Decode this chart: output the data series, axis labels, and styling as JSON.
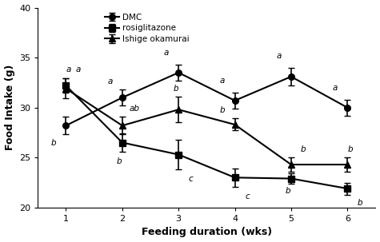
{
  "weeks": [
    1,
    2,
    3,
    4,
    5,
    6
  ],
  "DMC": {
    "y": [
      28.2,
      31.0,
      33.5,
      30.7,
      33.1,
      30.0
    ],
    "yerr": [
      0.9,
      0.8,
      0.8,
      0.8,
      0.9,
      0.8
    ],
    "label": "DMC",
    "marker": "o",
    "letters": [
      "b",
      "a",
      "a",
      "a",
      "a",
      "a"
    ],
    "letter_positions": [
      [
        0.78,
        26.9,
        "center",
        "top"
      ],
      [
        1.78,
        32.2,
        "center",
        "bottom"
      ],
      [
        2.78,
        35.1,
        "center",
        "bottom"
      ],
      [
        3.78,
        32.3,
        "center",
        "bottom"
      ],
      [
        4.78,
        34.8,
        "center",
        "bottom"
      ],
      [
        5.78,
        31.6,
        "center",
        "bottom"
      ]
    ]
  },
  "rosiglitazone": {
    "y": [
      32.2,
      26.5,
      25.3,
      23.0,
      22.9,
      21.9
    ],
    "yerr": [
      0.7,
      0.9,
      1.5,
      0.9,
      0.5,
      0.6
    ],
    "label": "rosiglitazone",
    "marker": "s",
    "letters": [
      "a",
      "b",
      "c",
      "c",
      "b",
      "b"
    ],
    "letter_positions": [
      [
        1.05,
        33.4,
        "center",
        "bottom"
      ],
      [
        1.95,
        25.0,
        "center",
        "top"
      ],
      [
        3.22,
        23.3,
        "center",
        "top"
      ],
      [
        4.22,
        21.5,
        "center",
        "top"
      ],
      [
        4.95,
        22.1,
        "center",
        "top"
      ],
      [
        6.22,
        20.9,
        "center",
        "top"
      ]
    ]
  },
  "ishige": {
    "y": [
      31.9,
      28.2,
      29.8,
      28.3,
      24.3,
      24.3
    ],
    "yerr": [
      1.0,
      0.9,
      1.3,
      0.6,
      0.7,
      0.7
    ],
    "label": "Ishige okamurai",
    "marker": "^",
    "letters": [
      "a",
      "ab",
      "b",
      "b",
      "b",
      "b"
    ],
    "letter_positions": [
      [
        1.22,
        33.4,
        "center",
        "bottom"
      ],
      [
        2.22,
        29.5,
        "center",
        "bottom"
      ],
      [
        2.95,
        31.5,
        "center",
        "bottom"
      ],
      [
        3.78,
        29.3,
        "center",
        "bottom"
      ],
      [
        5.22,
        25.4,
        "center",
        "bottom"
      ],
      [
        6.05,
        25.4,
        "center",
        "bottom"
      ]
    ]
  },
  "xlabel": "Feeding duration (wks)",
  "ylabel": "Food Intake (g)",
  "ylim": [
    20,
    40
  ],
  "yticks": [
    20,
    25,
    30,
    35,
    40
  ],
  "xlim": [
    0.5,
    6.5
  ],
  "xticks": [
    1,
    2,
    3,
    4,
    5,
    6
  ]
}
